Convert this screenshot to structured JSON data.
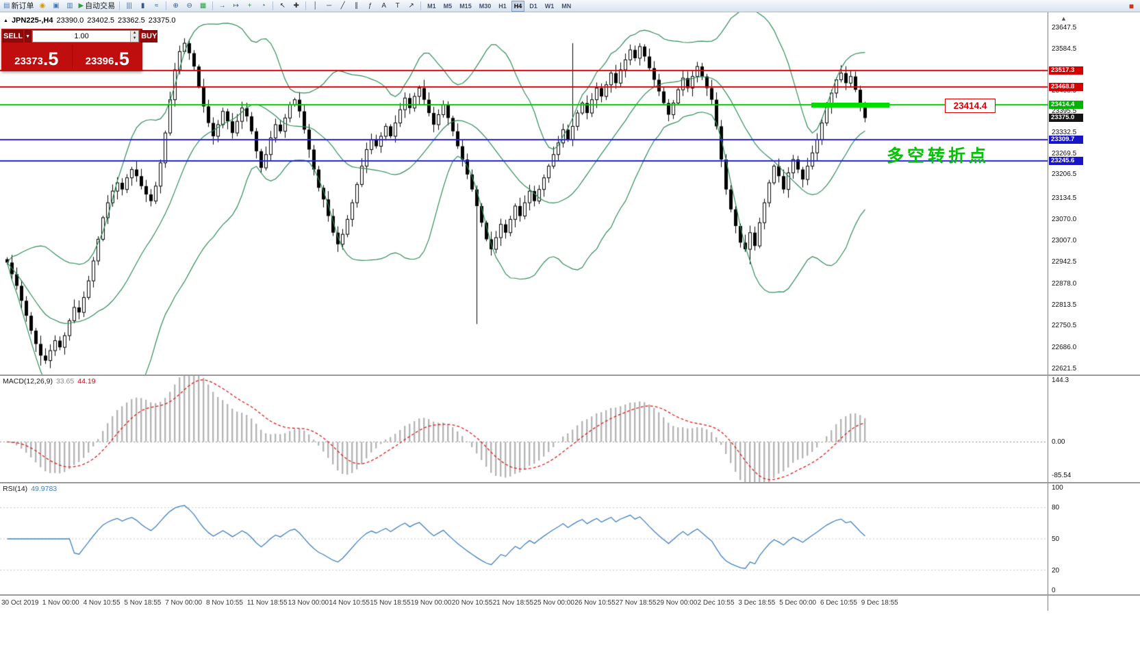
{
  "toolbar": {
    "buttons": [
      {
        "name": "new-order-button",
        "glyph": "▤",
        "glyph_color": "#4a7ab5",
        "label": "新订单"
      },
      {
        "name": "sound-alert-icon",
        "glyph": "◉",
        "glyph_color": "#d79b00"
      },
      {
        "name": "chart-window-icon",
        "glyph": "▣",
        "glyph_color": "#4a7ab5"
      },
      {
        "name": "profiles-icon",
        "glyph": "▥",
        "glyph_color": "#4a7ab5"
      },
      {
        "name": "auto-trading-button",
        "glyph": "▶",
        "glyph_color": "#2aa23a",
        "label": "自动交易"
      },
      {
        "sep": true
      },
      {
        "name": "bar-chart-icon",
        "glyph": "|||",
        "glyph_color": "#35598c"
      },
      {
        "name": "candlestick-chart-icon",
        "glyph": "▮",
        "glyph_color": "#35598c"
      },
      {
        "name": "line-chart-icon",
        "glyph": "≈",
        "glyph_color": "#35598c"
      },
      {
        "sep": true
      },
      {
        "name": "zoom-in-icon",
        "glyph": "⊕",
        "glyph_color": "#35598c"
      },
      {
        "name": "zoom-out-icon",
        "glyph": "⊖",
        "glyph_color": "#35598c"
      },
      {
        "name": "tile-windows-icon",
        "glyph": "▦",
        "glyph_color": "#2aa23a"
      },
      {
        "sep": true
      },
      {
        "name": "auto-scroll-icon",
        "glyph": "→",
        "glyph_color": "#35598c"
      },
      {
        "name": "chart-shift-icon",
        "glyph": "↦",
        "glyph_color": "#35598c"
      },
      {
        "name": "indicators-icon",
        "glyph": "+",
        "glyph_color": "#2aa23a"
      },
      {
        "name": "period-icon",
        "glyph": "◔",
        "glyph_color": "#35598c"
      },
      {
        "sep": true
      },
      {
        "name": "cursor-icon",
        "glyph": "↖",
        "glyph_color": "#333333"
      },
      {
        "name": "crosshair-icon",
        "glyph": "✚",
        "glyph_color": "#333333"
      },
      {
        "sep": true
      },
      {
        "name": "vertical-line-icon",
        "glyph": "│",
        "glyph_color": "#333333"
      },
      {
        "name": "horizontal-line-icon",
        "glyph": "─",
        "glyph_color": "#333333"
      },
      {
        "name": "trendline-icon",
        "glyph": "╱",
        "glyph_color": "#333333"
      },
      {
        "name": "channel-icon",
        "glyph": "∥",
        "glyph_color": "#333333"
      },
      {
        "name": "fibonacci-icon",
        "glyph": "ƒ",
        "glyph_color": "#333333"
      },
      {
        "name": "text-icon",
        "glyph": "A",
        "glyph_color": "#333333"
      },
      {
        "name": "label-icon",
        "glyph": "T",
        "glyph_color": "#333333"
      },
      {
        "name": "arrows-icon",
        "glyph": "↗",
        "glyph_color": "#333333"
      },
      {
        "sep": true
      }
    ],
    "timeframes": [
      "M1",
      "M5",
      "M15",
      "M30",
      "H1",
      "H4",
      "D1",
      "W1",
      "MN"
    ],
    "active_timeframe": "H4",
    "right_icon_glyph": "■"
  },
  "symbol_header": {
    "marker": "▲",
    "symbol": "JPN225-,H4",
    "open": "23390.0",
    "high": "23402.5",
    "low": "23362.5",
    "close": "23375.0"
  },
  "trade_panel": {
    "sell_label": "SELL",
    "buy_label": "BUY",
    "volume": "1.00",
    "dropdown_glyph": "▼",
    "spin_up_glyph": "▲",
    "spin_down_glyph": "▼",
    "sell_price_main": "23373",
    "sell_price_frac": ".5",
    "buy_price_main": "23396",
    "buy_price_frac": ".5"
  },
  "price_axis": {
    "plain_labels": [
      "23647.5",
      "23584.5",
      "23521.5",
      "23458.5",
      "23395.5",
      "23332.5",
      "23269.5",
      "23206.5",
      "23134.5",
      "23070.0",
      "23007.0",
      "22942.5",
      "22878.0",
      "22813.5",
      "22750.5",
      "22686.0",
      "22621.5"
    ],
    "badges": [
      {
        "text": "23517.3",
        "bg": "#d40000",
        "fg": "#ffffff"
      },
      {
        "text": "23468.8",
        "bg": "#d40000",
        "fg": "#ffffff"
      },
      {
        "text": "23414.4",
        "bg": "#00b400",
        "fg": "#ffffff"
      },
      {
        "text": "23375.0",
        "bg": "#141414",
        "fg": "#ffffff"
      },
      {
        "text": "23309.7",
        "bg": "#1616c8",
        "fg": "#ffffff"
      },
      {
        "text": "23245.6",
        "bg": "#1616c8",
        "fg": "#ffffff"
      }
    ]
  },
  "indicators": {
    "macd": {
      "name": "MACD(12,26,9)",
      "main_value": "33.65",
      "signal_value": "44.19",
      "axis_labels": [
        "144.3",
        "0.00",
        "-85.54"
      ]
    },
    "rsi": {
      "name": "RSI(14)",
      "value": "49.9783",
      "axis_labels": [
        "100",
        "80",
        "50",
        "20",
        "0"
      ]
    }
  },
  "annotations": {
    "callout_text": "23414.4",
    "note_text": "多空转折点"
  },
  "misc": {
    "scroll_up_glyph": "▲"
  },
  "time_axis": [
    "30 Oct 2019",
    "1 Nov 00:00",
    "4 Nov 10:55",
    "5 Nov 18:55",
    "7 Nov 00:00",
    "8 Nov 10:55",
    "11 Nov 18:55",
    "13 Nov 00:00",
    "14 Nov 10:55",
    "15 Nov 18:55",
    "19 Nov 00:00",
    "20 Nov 10:55",
    "21 Nov 18:55",
    "25 Nov 00:00",
    "26 Nov 10:55",
    "27 Nov 18:55",
    "29 Nov 00:00",
    "2 Dec 10:55",
    "3 Dec 18:55",
    "5 Dec 00:00",
    "6 Dec 10:55",
    "9 Dec 18:55"
  ],
  "chart_data": {
    "type": "candlestick",
    "symbol": "JPN225-",
    "timeframe": "H4",
    "visible_range": {
      "start": "30 Oct 2019",
      "end": "9 Dec 2019"
    },
    "last_ohlc": {
      "open": 23390.0,
      "high": 23402.5,
      "low": 23362.5,
      "close": 23375.0
    },
    "price_axis_range": {
      "min": 22603,
      "max": 23693
    },
    "first_open": 22950,
    "closes": [
      22940,
      22905,
      22870,
      22825,
      22780,
      22735,
      22695,
      22660,
      22645,
      22675,
      22705,
      22685,
      22720,
      22765,
      22805,
      22790,
      22835,
      22885,
      22945,
      23010,
      23075,
      23120,
      23155,
      23180,
      23160,
      23195,
      23220,
      23200,
      23170,
      23145,
      23125,
      23170,
      23240,
      23330,
      23430,
      23520,
      23575,
      23600,
      23570,
      23530,
      23470,
      23410,
      23360,
      23320,
      23355,
      23395,
      23365,
      23330,
      23365,
      23405,
      23380,
      23335,
      23275,
      23225,
      23265,
      23315,
      23355,
      23335,
      23375,
      23415,
      23430,
      23395,
      23340,
      23280,
      23220,
      23165,
      23130,
      23080,
      23030,
      22995,
      23025,
      23070,
      23120,
      23175,
      23230,
      23280,
      23310,
      23290,
      23320,
      23350,
      23320,
      23360,
      23400,
      23435,
      23405,
      23440,
      23465,
      23430,
      23390,
      23355,
      23385,
      23415,
      23375,
      23335,
      23290,
      23250,
      23205,
      23160,
      23110,
      23060,
      23010,
      22980,
      23015,
      23055,
      23030,
      23070,
      23110,
      23080,
      23120,
      23155,
      23125,
      23160,
      23195,
      23230,
      23265,
      23300,
      23340,
      23310,
      23350,
      23390,
      23420,
      23390,
      23430,
      23465,
      23440,
      23475,
      23510,
      23480,
      23520,
      23550,
      23580,
      23555,
      23590,
      23560,
      23525,
      23490,
      23455,
      23420,
      23385,
      23420,
      23460,
      23495,
      23465,
      23500,
      23530,
      23500,
      23465,
      23430,
      23350,
      23250,
      23160,
      23100,
      23050,
      23000,
      22980,
      23030,
      22990,
      23060,
      23120,
      23180,
      23230,
      23200,
      23160,
      23210,
      23250,
      23220,
      23190,
      23230,
      23270,
      23310,
      23360,
      23410,
      23450,
      23490,
      23510,
      23480,
      23500,
      23460,
      23415,
      23375
    ],
    "wick_spikes": [
      {
        "i": 7,
        "low": 22630
      },
      {
        "i": 98,
        "low": 22755
      },
      {
        "i": 118,
        "high": 23600
      },
      {
        "i": 155,
        "low": 22935
      }
    ],
    "overlays": {
      "bollinger_bands": {
        "period": 20,
        "deviation": 2,
        "color": "#2e8b57"
      },
      "horizontal_lines": [
        {
          "price": 23517.3,
          "color": "#e00000"
        },
        {
          "price": 23468.8,
          "color": "#e00000"
        },
        {
          "price": 23414.4,
          "color": "#00cc00"
        },
        {
          "price": 23309.7,
          "color": "#2222dd"
        },
        {
          "price": 23245.6,
          "color": "#2222dd"
        }
      ],
      "thick_segment": {
        "price": 23414.4,
        "color": "#00dc00"
      },
      "callout": "23414.4",
      "annotation": "多空转折点"
    },
    "macd": {
      "params": "12,26,9",
      "display_values": [
        "33.65",
        "44.19"
      ],
      "range": {
        "min": -90,
        "max": 148
      },
      "histogram_color": "#b4b4b4",
      "signal_color": "#e41414"
    },
    "rsi": {
      "params": "14",
      "display_value": "49.9783",
      "line_color": "#3e7fc1",
      "levels": [
        80,
        50,
        20
      ]
    }
  }
}
